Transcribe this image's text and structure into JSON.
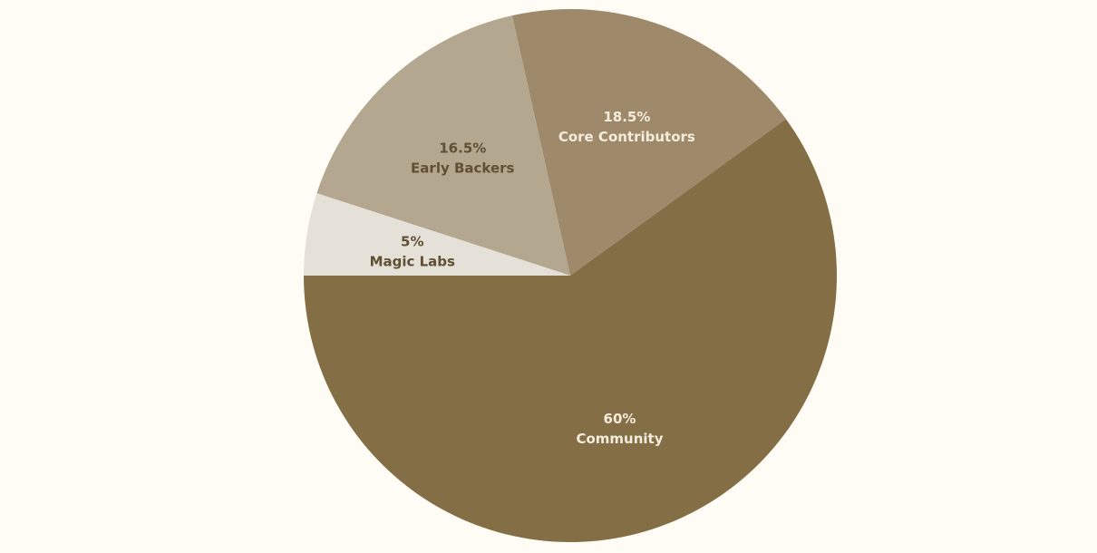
{
  "chart_data": {
    "type": "pie",
    "start_angle_deg": 180,
    "direction": "counterclockwise",
    "slices": [
      {
        "label": "Community",
        "value": 60,
        "display": "60%",
        "color": "#836e45",
        "label_color": "#f4ecdc"
      },
      {
        "label": "Core Contributors",
        "value": 18.5,
        "display": "18.5%",
        "color": "#9e8a6b",
        "label_color": "#f4ecdc"
      },
      {
        "label": "Early Backers",
        "value": 16.5,
        "display": "16.5%",
        "color": "#b4a78f",
        "label_color": "#5f4f33"
      },
      {
        "label": "Magic Labs",
        "value": 5,
        "display": "5%",
        "color": "#e6e1d8",
        "label_color": "#5f4f33"
      }
    ]
  }
}
